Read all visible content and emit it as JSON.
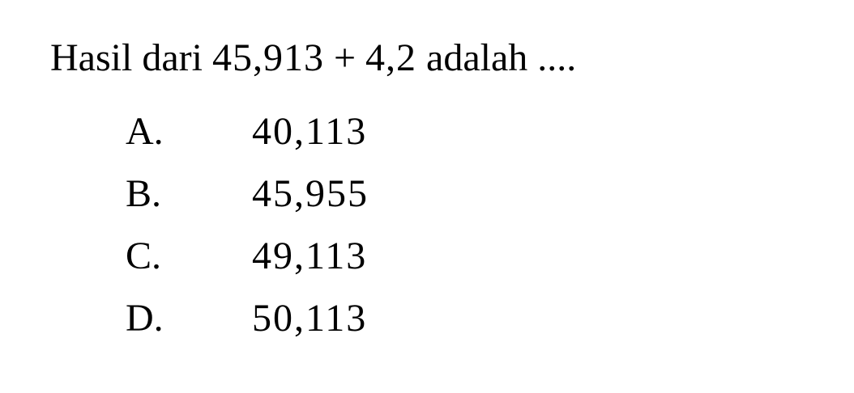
{
  "question": {
    "text_before": "Hasil dari ",
    "operand_a": "45,913",
    "operator": " + ",
    "operand_b": "4,2",
    "text_after": " adalah ...."
  },
  "options": [
    {
      "letter": "A.",
      "value": "40,113"
    },
    {
      "letter": "B.",
      "value": "45,955"
    },
    {
      "letter": "C.",
      "value": "49,113"
    },
    {
      "letter": "D.",
      "value": "50,113"
    }
  ]
}
